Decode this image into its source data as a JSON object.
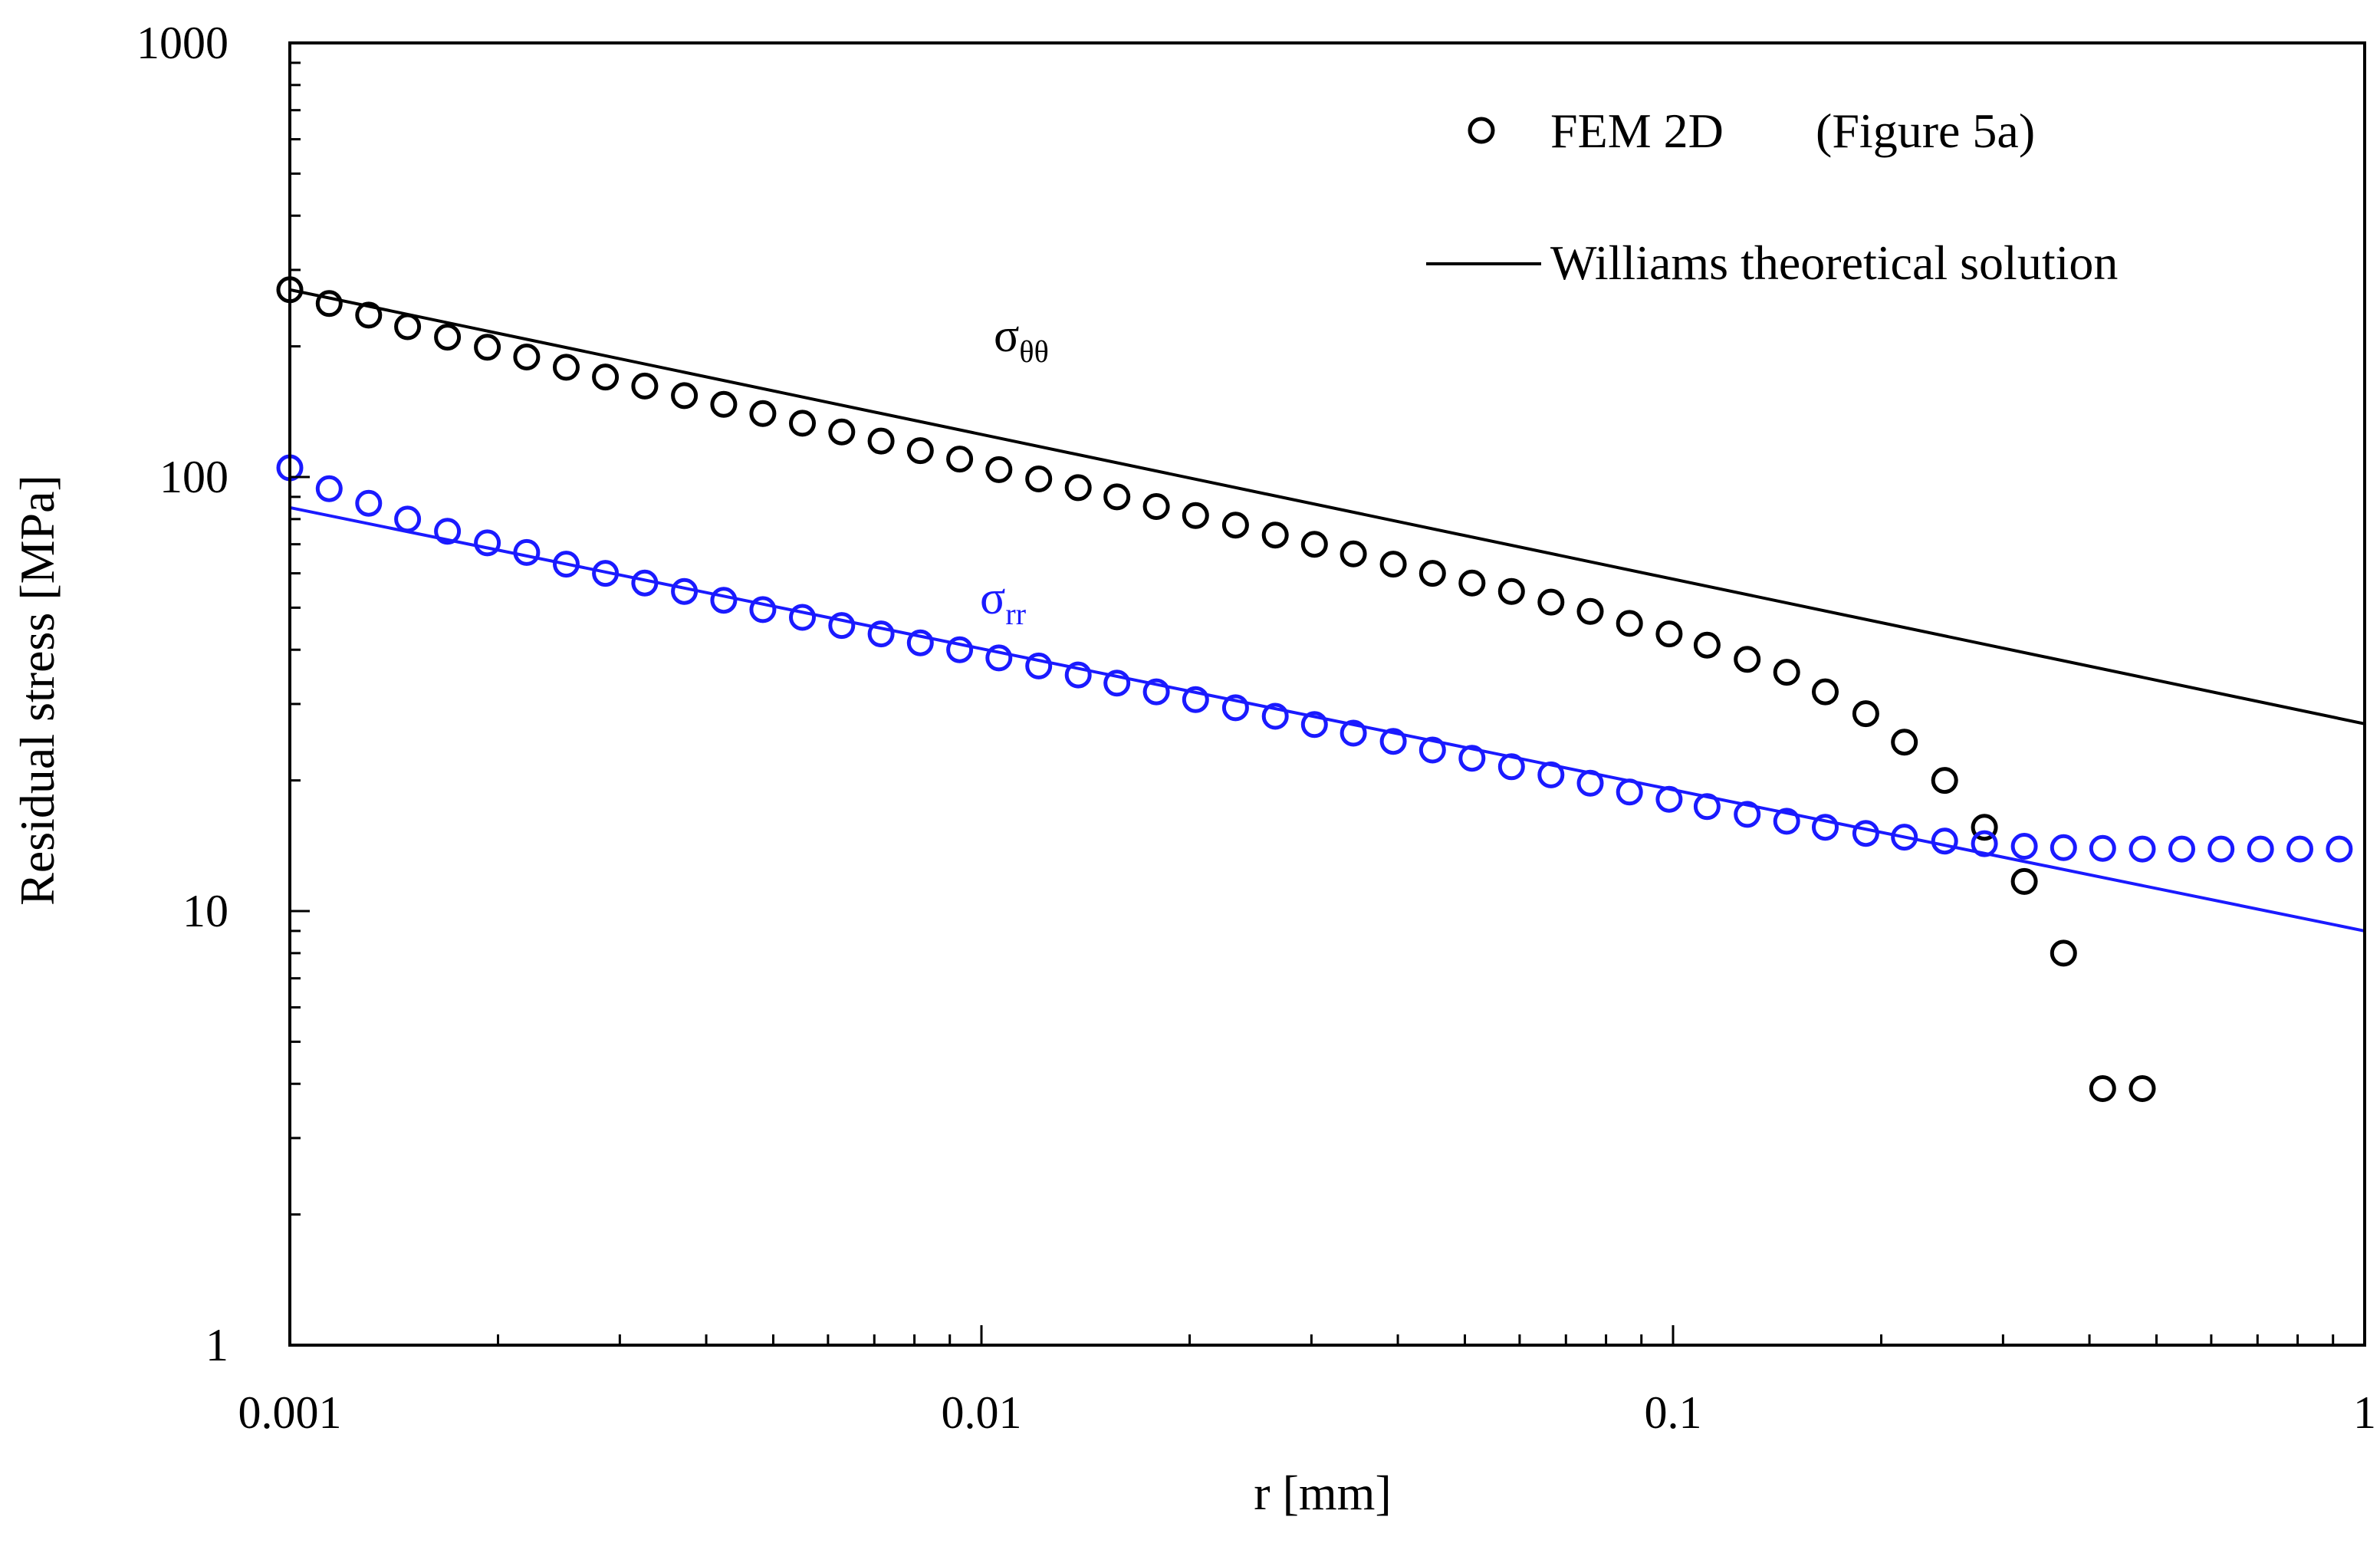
{
  "chart_data": {
    "type": "scatter",
    "xlabel": "r [mm]",
    "ylabel": "Residual stress [MPa]",
    "xscale": "log",
    "yscale": "log",
    "xlim": [
      0.001,
      1
    ],
    "ylim": [
      1,
      1000
    ],
    "x_ticks": [
      {
        "value": 0.001,
        "label": "0.001"
      },
      {
        "value": 0.01,
        "label": "0.01"
      },
      {
        "value": 0.1,
        "label": "0.1"
      },
      {
        "value": 1,
        "label": "1"
      }
    ],
    "y_ticks": [
      {
        "value": 1,
        "label": "1"
      },
      {
        "value": 10,
        "label": "10"
      },
      {
        "value": 100,
        "label": "100"
      },
      {
        "value": 1000,
        "label": "1000"
      }
    ],
    "legend": {
      "position": "top-right",
      "entries": [
        {
          "label": "FEM 2D",
          "label_extra": "(Figure 5a)",
          "marker": "circle"
        },
        {
          "label": "Williams theoretical solution",
          "marker": "line"
        }
      ]
    },
    "annotations": [
      {
        "base": "σ",
        "sub": "θθ",
        "at": [
          0.0225,
          198
        ],
        "color": "#000000"
      },
      {
        "base": "σ",
        "sub": "rr",
        "at": [
          0.0096,
          43
        ],
        "color": "#1a1aff"
      }
    ],
    "series": [
      {
        "name": "FEM 2D σθθ",
        "color": "#000000",
        "style": "markers",
        "x": [
          0.001,
          0.00114,
          0.0013,
          0.00148,
          0.00169,
          0.00193,
          0.0022,
          0.00251,
          0.00286,
          0.00326,
          0.00372,
          0.00424,
          0.00483,
          0.00551,
          0.00628,
          0.00716,
          0.00816,
          0.0093,
          0.0106,
          0.0121,
          0.0138,
          0.0157,
          0.0179,
          0.0204,
          0.0233,
          0.0266,
          0.0303,
          0.0345,
          0.0394,
          0.0449,
          0.0512,
          0.0584,
          0.0666,
          0.0759,
          0.0865,
          0.0987,
          0.112,
          0.128,
          0.146,
          0.166,
          0.19,
          0.216,
          0.247,
          0.282,
          0.322,
          0.367,
          0.418,
          0.477
        ],
        "y": [
          270,
          251,
          236,
          222,
          210,
          199,
          189,
          179,
          170,
          162,
          154,
          147,
          140,
          133,
          127,
          121,
          115,
          110,
          104,
          99,
          94.5,
          90,
          85.5,
          81.5,
          77.5,
          73.5,
          70,
          66.5,
          63,
          60,
          57,
          54.5,
          51.5,
          49,
          46,
          43.5,
          41,
          38,
          35.5,
          32,
          28.5,
          24.5,
          20,
          15.6,
          11.7,
          8,
          3.9,
          3.9
        ]
      },
      {
        "name": "FEM 2D σrr",
        "color": "#1a1aff",
        "style": "markers",
        "x": [
          0.001,
          0.00114,
          0.0013,
          0.00148,
          0.00169,
          0.00193,
          0.0022,
          0.00251,
          0.00286,
          0.00326,
          0.00372,
          0.00424,
          0.00483,
          0.00551,
          0.00628,
          0.00716,
          0.00816,
          0.0093,
          0.0106,
          0.0121,
          0.0138,
          0.0157,
          0.0179,
          0.0204,
          0.0233,
          0.0266,
          0.0303,
          0.0345,
          0.0394,
          0.0449,
          0.0512,
          0.0584,
          0.0666,
          0.0759,
          0.0865,
          0.0987,
          0.112,
          0.128,
          0.146,
          0.166,
          0.19,
          0.216,
          0.247,
          0.282,
          0.322,
          0.367,
          0.418,
          0.477,
          0.544,
          0.62,
          0.707,
          0.806,
          0.919
        ],
        "y": [
          105,
          94,
          87,
          80,
          75,
          70.5,
          67,
          63,
          60,
          57,
          54.5,
          52,
          49.5,
          47.5,
          45.5,
          43.5,
          41.5,
          40,
          38.3,
          36.7,
          35,
          33.5,
          32,
          30.7,
          29.4,
          28.1,
          26.9,
          25.7,
          24.6,
          23.5,
          22.5,
          21.5,
          20.6,
          19.7,
          18.8,
          18.1,
          17.4,
          16.7,
          16.1,
          15.6,
          15.1,
          14.8,
          14.5,
          14.3,
          14.1,
          14,
          13.95,
          13.9,
          13.9,
          13.9,
          13.9,
          13.9,
          13.9
        ]
      },
      {
        "name": "Williams σθθ",
        "color": "#000000",
        "style": "line",
        "x": [
          0.001,
          1
        ],
        "y": [
          270,
          27
        ]
      },
      {
        "name": "Williams σrr",
        "color": "#1a1aff",
        "style": "line",
        "x": [
          0.001,
          1
        ],
        "y": [
          85,
          9
        ]
      }
    ]
  }
}
